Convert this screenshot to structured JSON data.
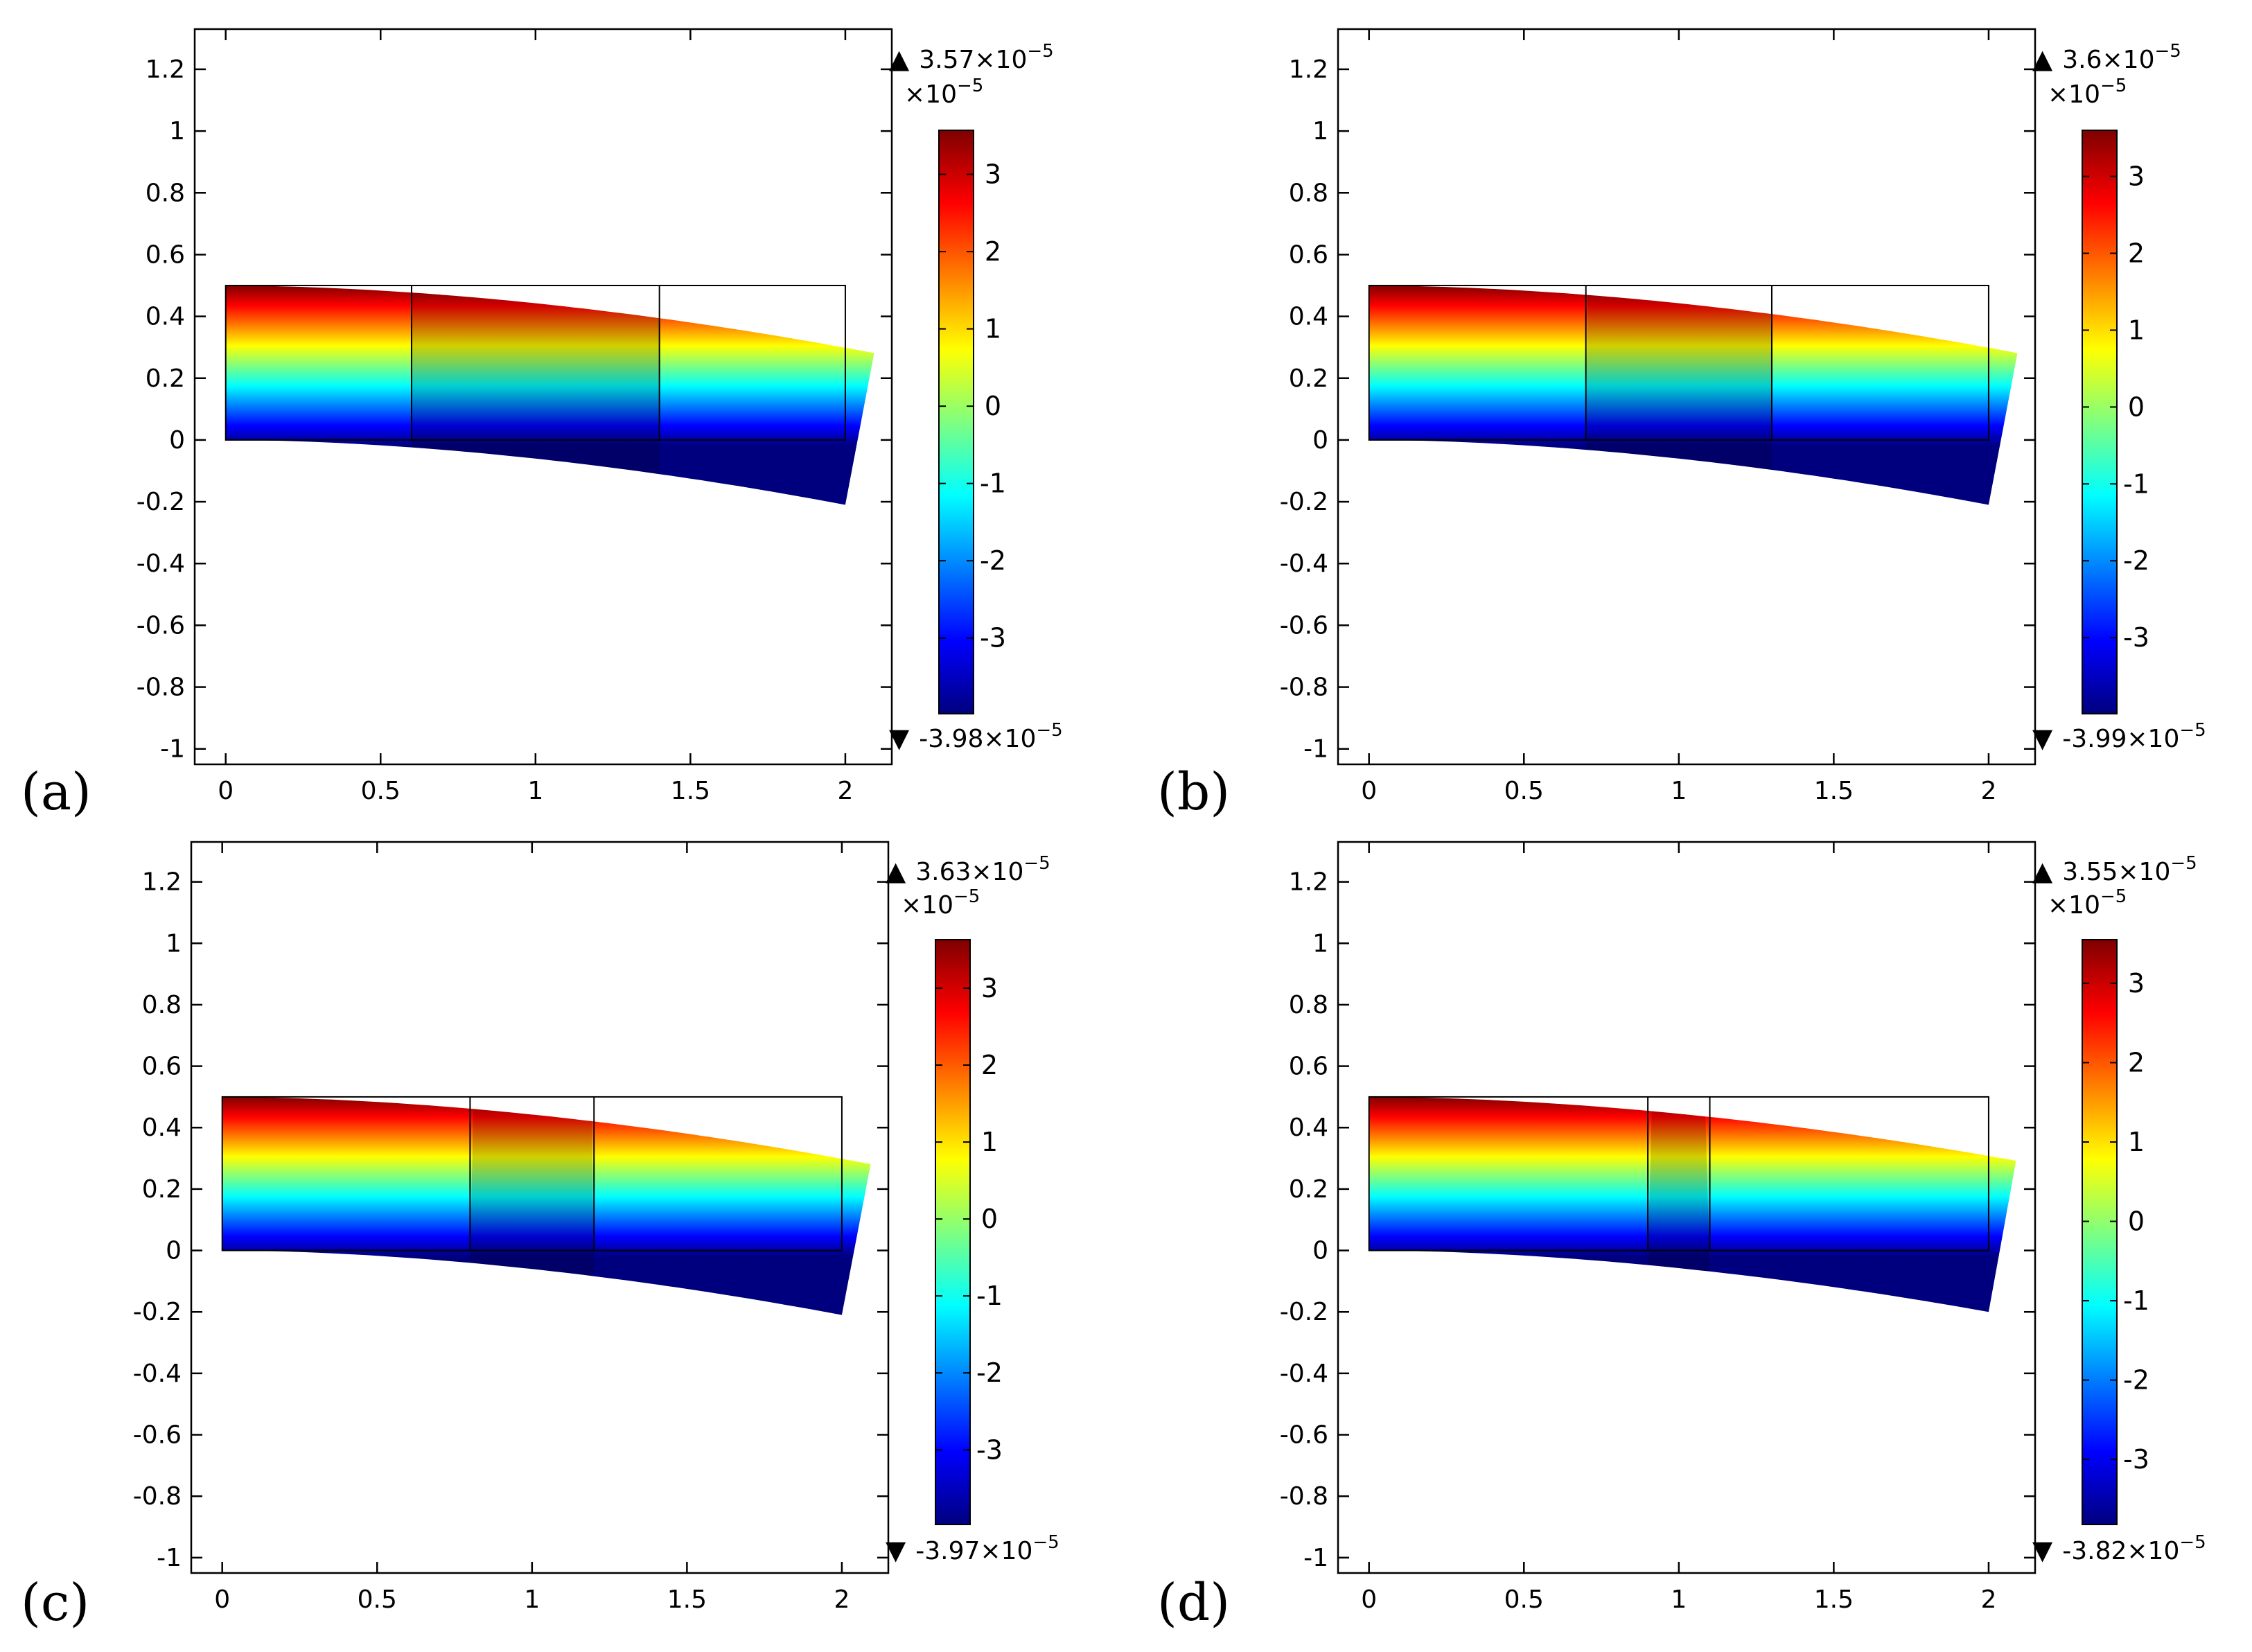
{
  "figure": {
    "x_ticks": [
      "0",
      "0.5",
      "1",
      "1.5",
      "2"
    ],
    "x_tick_values": [
      0,
      0.5,
      1,
      1.5,
      2
    ],
    "y_ticks": [
      "1.2",
      "1",
      "0.8",
      "0.6",
      "0.4",
      "0.2",
      "0",
      "-0.2",
      "-0.4",
      "-0.6",
      "-0.8",
      "-1"
    ],
    "y_tick_values": [
      1.2,
      1,
      0.8,
      0.6,
      0.4,
      0.2,
      0,
      -0.2,
      -0.4,
      -0.6,
      -0.8,
      -1
    ],
    "colorbar_ticks": [
      "3",
      "2",
      "1",
      "0",
      "-1",
      "-2",
      "-3"
    ],
    "colorbar_tick_values": [
      3,
      2,
      1,
      0,
      -1,
      -2,
      -3
    ],
    "colorbar_multiplier": "×10",
    "multiplier_exponent": "−5",
    "max_marker": "▲",
    "min_marker": "▼",
    "colormap": [
      "#00007f",
      "#0000ff",
      "#007fff",
      "#00ffff",
      "#7fff7f",
      "#ffff00",
      "#ff7f00",
      "#ff0000",
      "#7f0000"
    ]
  },
  "chart_data": [
    {
      "type": "heatmap",
      "panel": "(a)",
      "title": "",
      "xlabel": "",
      "ylabel": "",
      "xlim": [
        -0.1,
        2.15
      ],
      "ylim": [
        -1.05,
        1.33
      ],
      "colorbar_range": [
        -3.98,
        3.57
      ],
      "max_mantissa": "3.57",
      "min_mantissa": "-3.98",
      "max_label": "3.57×10−5",
      "min_label": "-3.98×10−5",
      "undeformed_beam": {
        "x": [
          0,
          2
        ],
        "y": [
          0,
          0.5
        ]
      },
      "segment_boundaries": [
        0.6,
        1.4
      ],
      "tip_deflection": -0.21
    },
    {
      "type": "heatmap",
      "panel": "(b)",
      "title": "",
      "xlabel": "",
      "ylabel": "",
      "xlim": [
        -0.1,
        2.15
      ],
      "ylim": [
        -1.05,
        1.33
      ],
      "colorbar_range": [
        -3.99,
        3.6
      ],
      "max_mantissa": "3.6",
      "min_mantissa": "-3.99",
      "max_label": "3.6×10−5",
      "min_label": "-3.99×10−5",
      "undeformed_beam": {
        "x": [
          0,
          2
        ],
        "y": [
          0,
          0.5
        ]
      },
      "segment_boundaries": [
        0.7,
        1.3
      ],
      "tip_deflection": -0.21
    },
    {
      "type": "heatmap",
      "panel": "(c)",
      "title": "",
      "xlabel": "",
      "ylabel": "",
      "xlim": [
        -0.1,
        2.15
      ],
      "ylim": [
        -1.05,
        1.33
      ],
      "colorbar_range": [
        -3.97,
        3.63
      ],
      "max_mantissa": "3.63",
      "min_mantissa": "-3.97",
      "max_label": "3.63×10−5",
      "min_label": "-3.97×10−5",
      "undeformed_beam": {
        "x": [
          0,
          2
        ],
        "y": [
          0,
          0.5
        ]
      },
      "segment_boundaries": [
        0.8,
        1.2
      ],
      "tip_deflection": -0.21
    },
    {
      "type": "heatmap",
      "panel": "(d)",
      "title": "",
      "xlabel": "",
      "ylabel": "",
      "xlim": [
        -0.1,
        2.15
      ],
      "ylim": [
        -1.05,
        1.33
      ],
      "colorbar_range": [
        -3.82,
        3.55
      ],
      "max_mantissa": "3.55",
      "min_mantissa": "-3.82",
      "max_label": "3.55×10−5",
      "min_label": "-3.82×10−5",
      "undeformed_beam": {
        "x": [
          0,
          2
        ],
        "y": [
          0,
          0.5
        ]
      },
      "segment_boundaries": [
        0.9,
        1.1
      ],
      "tip_deflection": -0.2
    }
  ]
}
